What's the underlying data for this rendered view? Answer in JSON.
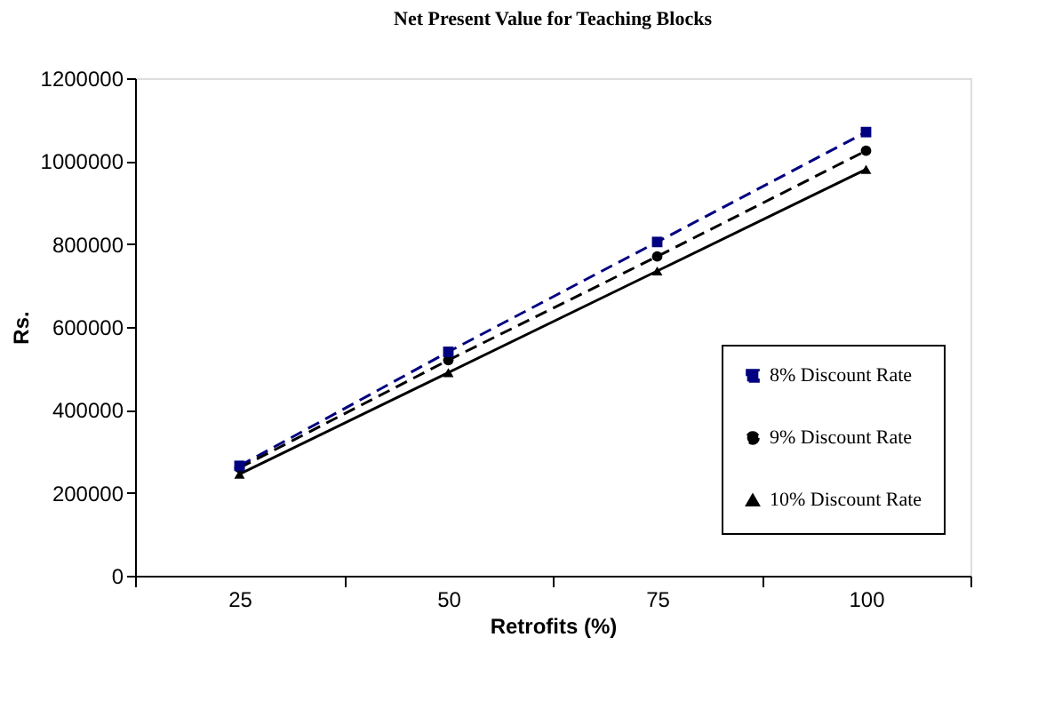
{
  "chart_data": {
    "type": "line",
    "title": "Net Present Value for Teaching Blocks",
    "xlabel": "Retrofits (%)",
    "ylabel": "Rs.",
    "categories": [
      "25",
      "50",
      "75",
      "100"
    ],
    "series": [
      {
        "name": "8% Discount Rate",
        "color": "#000080",
        "values": [
          265000,
          540000,
          805000,
          1070000
        ],
        "marker": "square",
        "line_style": "dashed"
      },
      {
        "name": "9% Discount Rate",
        "color": "#000000",
        "values": [
          260000,
          520000,
          770000,
          1025000
        ],
        "marker": "circle",
        "line_style": "dashed"
      },
      {
        "name": "10% Discount Rate",
        "color": "#000000",
        "values": [
          245000,
          490000,
          735000,
          980000
        ],
        "marker": "triangle",
        "line_style": "solid"
      }
    ],
    "ylim": [
      0,
      1200000
    ],
    "yticks": [
      0,
      200000,
      400000,
      600000,
      800000,
      1000000,
      1200000
    ],
    "grid": false,
    "legend": "right"
  }
}
